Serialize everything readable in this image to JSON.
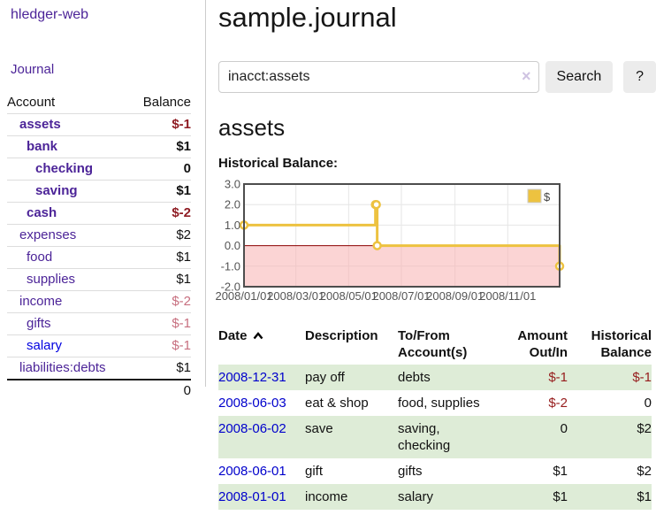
{
  "app": {
    "title": "hledger-web",
    "nav_journal": "Journal"
  },
  "sidebar": {
    "headers": {
      "account": "Account",
      "balance": "Balance"
    },
    "accounts": [
      {
        "account": "assets",
        "balance": "$-1",
        "indent": 1,
        "bold": true,
        "neg": "dark"
      },
      {
        "account": "bank",
        "balance": "$1",
        "indent": 2,
        "bold": true,
        "neg": null
      },
      {
        "account": "checking",
        "balance": "0",
        "indent": 3,
        "bold": true,
        "neg": null
      },
      {
        "account": "saving",
        "balance": "$1",
        "indent": 3,
        "bold": true,
        "neg": null
      },
      {
        "account": "cash",
        "balance": "$-2",
        "indent": 2,
        "bold": true,
        "neg": "dark"
      },
      {
        "account": "expenses",
        "balance": "$2",
        "indent": 1,
        "bold": false,
        "neg": null
      },
      {
        "account": "food",
        "balance": "$1",
        "indent": 2,
        "bold": false,
        "neg": null
      },
      {
        "account": "supplies",
        "balance": "$1",
        "indent": 2,
        "bold": false,
        "neg": null
      },
      {
        "account": "income",
        "balance": "$-2",
        "indent": 1,
        "bold": false,
        "neg": "faded"
      },
      {
        "account": "gifts",
        "balance": "$-1",
        "indent": 2,
        "bold": false,
        "neg": "faded"
      },
      {
        "account": "salary",
        "balance": "$-1",
        "indent": 2,
        "bold": false,
        "neg": "faded",
        "link": "blue"
      },
      {
        "account": "liabilities:debts",
        "balance": "$1",
        "indent": 1,
        "bold": false,
        "neg": null
      }
    ],
    "total": "0"
  },
  "main": {
    "title": "sample.journal",
    "search": {
      "value": "inacct:assets",
      "clear_icon": "×",
      "search_button": "Search",
      "help_button": "?"
    },
    "account_heading": "assets",
    "section_heading": "Historical Balance:"
  },
  "register": {
    "headers": {
      "date": "Date",
      "description": "Description",
      "accounts": "To/From Account(s)",
      "amount": "Amount Out/In",
      "balance": "Historical Balance"
    },
    "rows": [
      {
        "date": "2008-12-31",
        "description": "pay off",
        "accounts": "debts",
        "amount": "$-1",
        "balance": "$-1",
        "amount_neg": true,
        "balance_neg": true
      },
      {
        "date": "2008-06-03",
        "description": "eat & shop",
        "accounts": "food, supplies",
        "amount": "$-2",
        "balance": "0",
        "amount_neg": true,
        "balance_neg": false
      },
      {
        "date": "2008-06-02",
        "description": "save",
        "accounts": "saving, checking",
        "amount": "0",
        "balance": "$2",
        "amount_neg": false,
        "balance_neg": false
      },
      {
        "date": "2008-06-01",
        "description": "gift",
        "accounts": "gifts",
        "amount": "$1",
        "balance": "$2",
        "amount_neg": false,
        "balance_neg": false
      },
      {
        "date": "2008-01-01",
        "description": "income",
        "accounts": "salary",
        "amount": "$1",
        "balance": "$1",
        "amount_neg": false,
        "balance_neg": false
      }
    ]
  },
  "chart_data": {
    "type": "line",
    "step": true,
    "title": "Historical Balance:",
    "legend": "$",
    "series": [
      {
        "name": "$",
        "color": "#edc240",
        "points": [
          {
            "date": "2008-01-01",
            "day": 0,
            "value": 1
          },
          {
            "date": "2008-06-01",
            "day": 152,
            "value": 2
          },
          {
            "date": "2008-06-02",
            "day": 153,
            "value": 2
          },
          {
            "date": "2008-06-03",
            "day": 154,
            "value": 0
          },
          {
            "date": "2008-12-31",
            "day": 365,
            "value": -1
          }
        ]
      }
    ],
    "x_ticks": [
      {
        "label": "2008/01/01",
        "day": 0
      },
      {
        "label": "2008/03/01",
        "day": 60
      },
      {
        "label": "2008/05/01",
        "day": 121
      },
      {
        "label": "2008/07/01",
        "day": 182
      },
      {
        "label": "2008/09/01",
        "day": 244
      },
      {
        "label": "2008/11/01",
        "day": 305
      }
    ],
    "y_ticks": [
      "3.0",
      "2.0",
      "1.0",
      "0.0",
      "-1.0",
      "-2.0"
    ],
    "ylim": [
      -2,
      3
    ],
    "xlim_days": [
      0,
      365
    ],
    "grid": true,
    "legend_position": "top-right",
    "negative_region_fill": "#f8b0b0",
    "zero_line_color": "#8b0000"
  },
  "colors": {
    "link_purple": "#4c2498",
    "link_blue": "#0000cc",
    "negative_dark": "#8f1d24",
    "negative_faded": "#c76f7f",
    "row_stripe_green": "#deecd7",
    "series_gold": "#edc240",
    "button_gray": "#ececec"
  }
}
